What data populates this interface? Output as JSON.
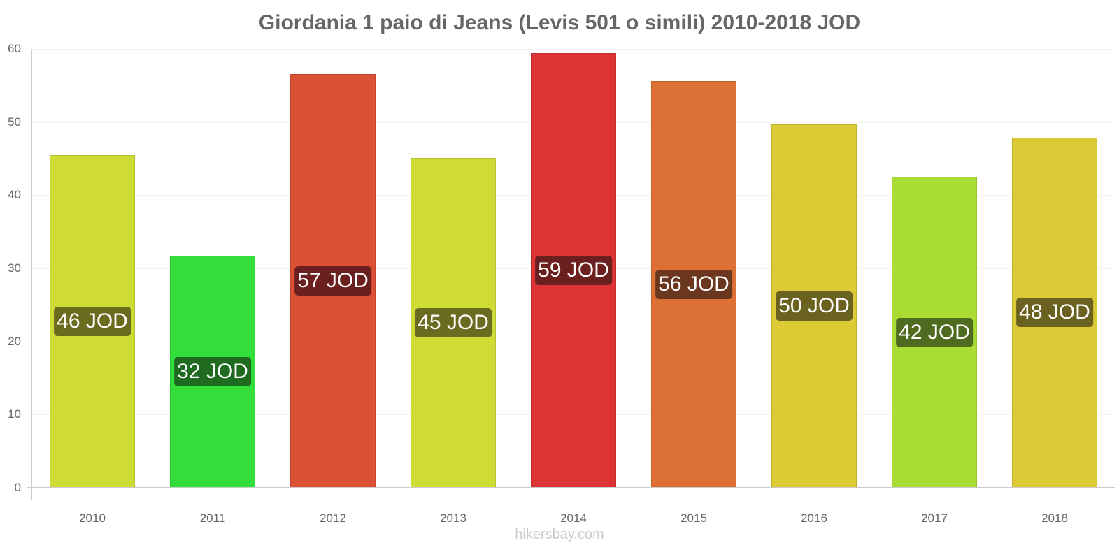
{
  "chart_data": {
    "type": "bar",
    "title": "Giordania 1 paio di Jeans (Levis 501 o simili) 2010-2018 JOD",
    "xlabel": "",
    "ylabel": "",
    "ylim": [
      0,
      60
    ],
    "yticks": [
      "0",
      "10",
      "20",
      "30",
      "40",
      "50",
      "60"
    ],
    "categories": [
      "2010",
      "2011",
      "2012",
      "2013",
      "2014",
      "2015",
      "2016",
      "2017",
      "2018"
    ],
    "values": [
      45.5,
      31.7,
      56.6,
      45.1,
      59.4,
      55.6,
      49.7,
      42.5,
      47.9
    ],
    "labels": [
      "46 JOD",
      "32 JOD",
      "57 JOD",
      "45 JOD",
      "59 JOD",
      "56 JOD",
      "50 JOD",
      "42 JOD",
      "48 JOD"
    ],
    "colors": [
      "#d0dc36",
      "#33dd3a",
      "#dc5034",
      "#d0dc36",
      "#dc3434",
      "#dd7035",
      "#dccb35",
      "#aadd33",
      "#dcc935"
    ],
    "label_bg": [
      "#6b6b1f",
      "#1f6b1f",
      "#6b1f1f",
      "#6b6b1f",
      "#6b1f1f",
      "#6b381f",
      "#6b621f",
      "#4f6b1f",
      "#6b621f"
    ],
    "grid": true,
    "legend": null
  },
  "credit": "hikersbay.com"
}
